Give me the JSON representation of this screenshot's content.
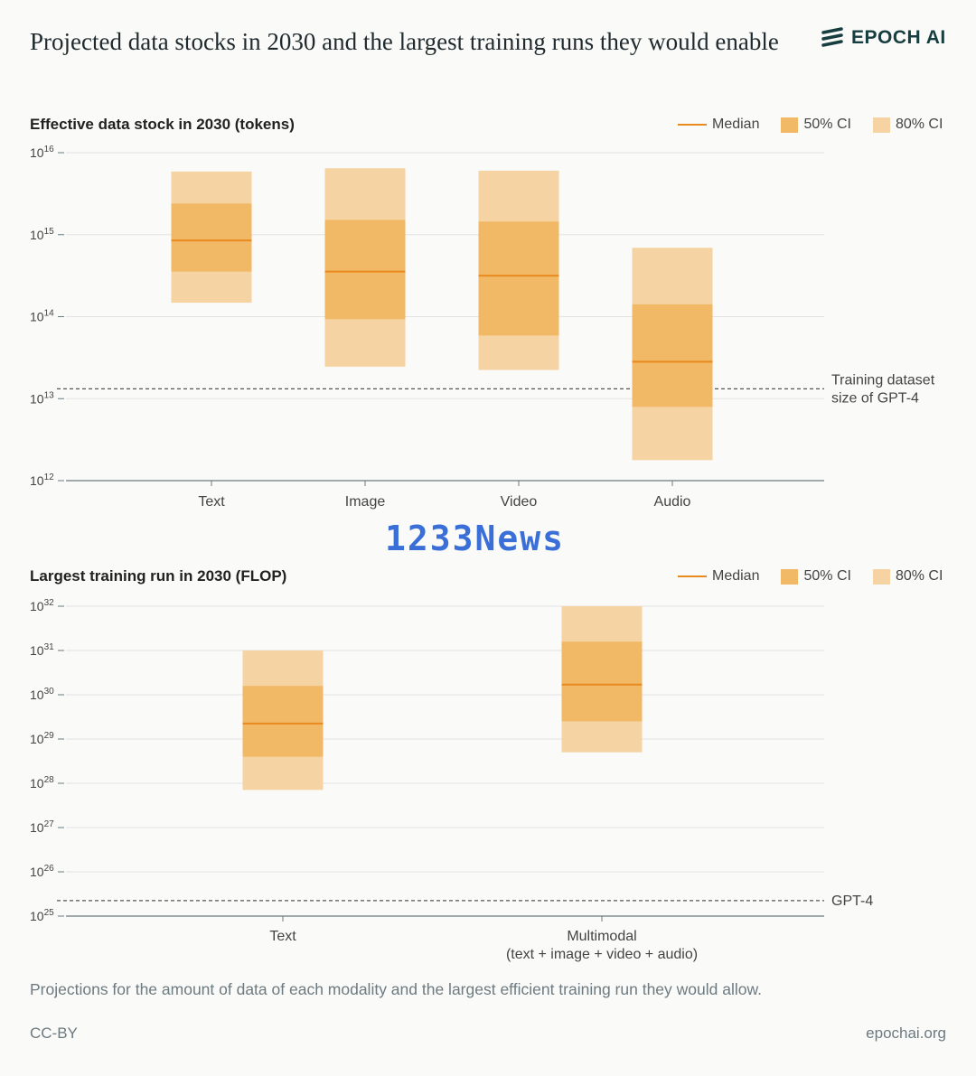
{
  "title": "Projected data stocks in 2030 and the largest training runs they would enable",
  "brand": "EPOCH AI",
  "legend": {
    "median": "Median",
    "ci50": "50% CI",
    "ci80": "80% CI"
  },
  "colors": {
    "median": "#e88a1e",
    "ci50": "#f1b866",
    "ci80": "#f6d3a2",
    "grid": "#e3e3e3",
    "axis": "#6b7b7f"
  },
  "watermark": "1233News",
  "chart_data": [
    {
      "type": "range-bar",
      "title": "Effective data stock in 2030 (tokens)",
      "scale": "log10",
      "ylim": [
        12,
        16
      ],
      "yticks": [
        12,
        13,
        14,
        15,
        16
      ],
      "categories": [
        "Text",
        "Image",
        "Video",
        "Audio"
      ],
      "median": [
        14.93,
        14.55,
        14.5,
        13.45
      ],
      "ci50": [
        [
          14.55,
          15.38
        ],
        [
          13.97,
          15.18
        ],
        [
          13.77,
          15.16
        ],
        [
          12.9,
          14.15
        ]
      ],
      "ci80": [
        [
          14.17,
          15.77
        ],
        [
          13.39,
          15.81
        ],
        [
          13.35,
          15.78
        ],
        [
          12.25,
          14.84
        ]
      ],
      "reference": {
        "value": 13.12,
        "label": [
          "Training dataset",
          "size of GPT-4"
        ]
      }
    },
    {
      "type": "range-bar",
      "title": "Largest training run in 2030 (FLOP)",
      "scale": "log10",
      "ylim": [
        25,
        32
      ],
      "yticks": [
        25,
        26,
        27,
        28,
        29,
        30,
        31,
        32
      ],
      "categories": [
        "Text",
        [
          "Multimodal",
          "(text + image + video + audio)"
        ]
      ],
      "median": [
        29.35,
        30.23
      ],
      "ci50": [
        [
          28.6,
          30.2
        ],
        [
          29.4,
          31.2
        ]
      ],
      "ci80": [
        [
          27.85,
          31.0
        ],
        [
          28.7,
          32.0
        ]
      ],
      "reference": {
        "value": 25.35,
        "label": [
          "GPT-4"
        ]
      }
    }
  ],
  "caption": "Projections for the amount of data of each modality and the largest efficient training run they would allow.",
  "footer": {
    "license": "CC-BY",
    "site": "epochai.org"
  }
}
